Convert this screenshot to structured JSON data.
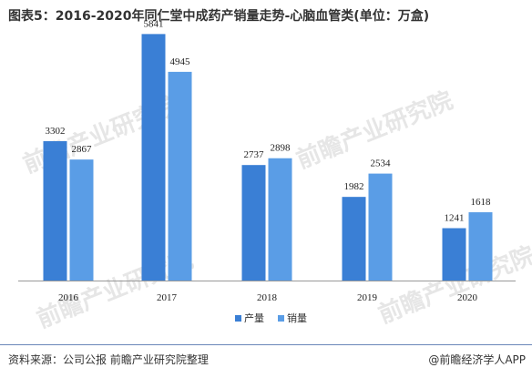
{
  "title": "图表5：2016-2020年同仁堂中成药产销量走势-心脑血管类(单位：万盒)",
  "footer": {
    "source": "资料来源：公司公报 前瞻产业研究院整理",
    "brand": "@前瞻经济学人APP"
  },
  "watermark": {
    "text": "前瞻产业研究院"
  },
  "colors": {
    "production": "#3a7fd5",
    "sales": "#5a9de6",
    "axis": "#999999",
    "footer_line": "#6a86b8"
  },
  "chart_data": {
    "type": "bar",
    "title": "图表5：2016-2020年同仁堂中成药产销量走势-心脑血管类(单位：万盒)",
    "categories": [
      "2016",
      "2017",
      "2018",
      "2019",
      "2020"
    ],
    "series": [
      {
        "name": "产量",
        "values": [
          3302,
          5841,
          2737,
          1982,
          1241
        ]
      },
      {
        "name": "销量",
        "values": [
          2867,
          4945,
          2898,
          2534,
          1618
        ]
      }
    ],
    "xlabel": "",
    "ylabel": "",
    "ylim": [
      0,
      6000
    ],
    "grid": false,
    "legend_position": "bottom"
  }
}
